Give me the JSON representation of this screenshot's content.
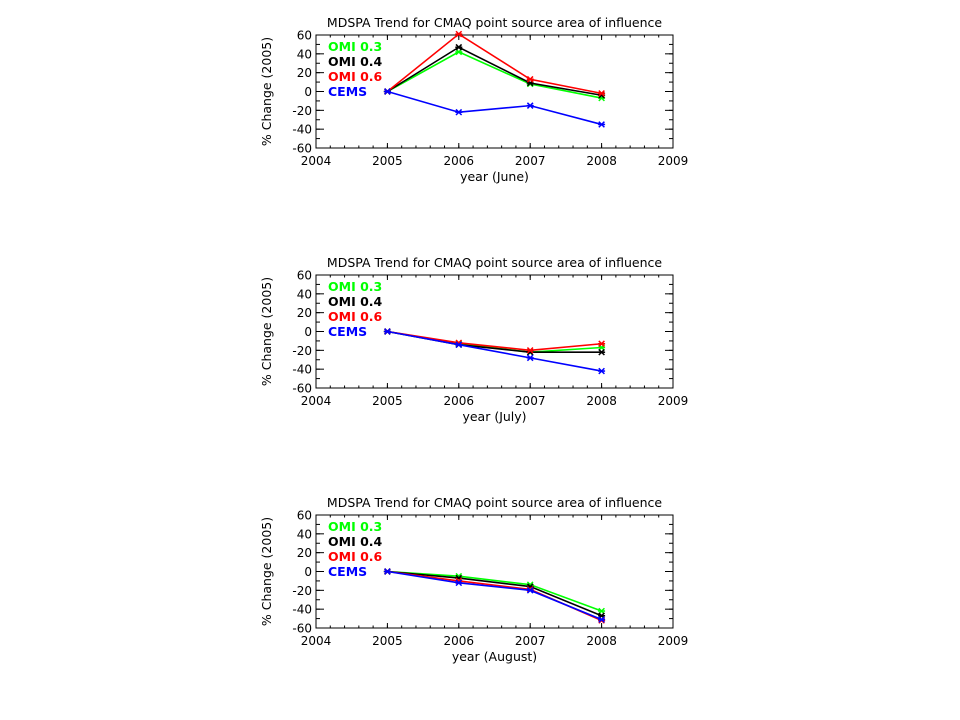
{
  "chart_data": [
    {
      "type": "line",
      "title": "MDSPA Trend for CMAQ point source area of influence",
      "xlabel": "year (June)",
      "ylabel": "% Change (2005)",
      "xlim": [
        2004,
        2009
      ],
      "ylim": [
        -60,
        60
      ],
      "xticks": [
        2004,
        2005,
        2006,
        2007,
        2008,
        2009
      ],
      "yticks": [
        60,
        40,
        20,
        0,
        -20,
        -40,
        -60
      ],
      "legend_position": "top-left",
      "grid": false,
      "x": [
        2005,
        2006,
        2007,
        2008
      ],
      "series": [
        {
          "name": "OMI 0.3",
          "color": "#00ff00",
          "values": [
            0,
            42,
            8,
            -7
          ]
        },
        {
          "name": "OMI 0.4",
          "color": "#000000",
          "values": [
            0,
            47,
            9,
            -4
          ]
        },
        {
          "name": "OMI 0.6",
          "color": "#ff0000",
          "values": [
            0,
            61,
            13,
            -2
          ]
        },
        {
          "name": "CEMS",
          "color": "#0000ff",
          "values": [
            0,
            -22,
            -15,
            -35
          ]
        }
      ]
    },
    {
      "type": "line",
      "title": "MDSPA Trend for CMAQ point source area of influence",
      "xlabel": "year (July)",
      "ylabel": "% Change (2005)",
      "xlim": [
        2004,
        2009
      ],
      "ylim": [
        -60,
        60
      ],
      "xticks": [
        2004,
        2005,
        2006,
        2007,
        2008,
        2009
      ],
      "yticks": [
        60,
        40,
        20,
        0,
        -20,
        -40,
        -60
      ],
      "legend_position": "top-left",
      "grid": false,
      "x": [
        2005,
        2006,
        2007,
        2008
      ],
      "series": [
        {
          "name": "OMI 0.3",
          "color": "#00ff00",
          "values": [
            0,
            -13,
            -22,
            -17
          ]
        },
        {
          "name": "OMI 0.4",
          "color": "#000000",
          "values": [
            0,
            -14,
            -22,
            -22
          ]
        },
        {
          "name": "OMI 0.6",
          "color": "#ff0000",
          "values": [
            0,
            -12,
            -20,
            -13
          ]
        },
        {
          "name": "CEMS",
          "color": "#0000ff",
          "values": [
            0,
            -14,
            -28,
            -42
          ]
        }
      ]
    },
    {
      "type": "line",
      "title": "MDSPA Trend for CMAQ point source area of influence",
      "xlabel": "year (August)",
      "ylabel": "% Change (2005)",
      "xlim": [
        2004,
        2009
      ],
      "ylim": [
        -60,
        60
      ],
      "xticks": [
        2004,
        2005,
        2006,
        2007,
        2008,
        2009
      ],
      "yticks": [
        60,
        40,
        20,
        0,
        -20,
        -40,
        -60
      ],
      "legend_position": "top-left",
      "grid": false,
      "x": [
        2005,
        2006,
        2007,
        2008
      ],
      "series": [
        {
          "name": "OMI 0.3",
          "color": "#00ff00",
          "values": [
            0,
            -5,
            -14,
            -42
          ]
        },
        {
          "name": "OMI 0.4",
          "color": "#000000",
          "values": [
            0,
            -7,
            -16,
            -47
          ]
        },
        {
          "name": "OMI 0.6",
          "color": "#ff0000",
          "values": [
            0,
            -10,
            -19,
            -52
          ]
        },
        {
          "name": "CEMS",
          "color": "#0000ff",
          "values": [
            0,
            -12,
            -20,
            -51
          ]
        }
      ]
    }
  ]
}
